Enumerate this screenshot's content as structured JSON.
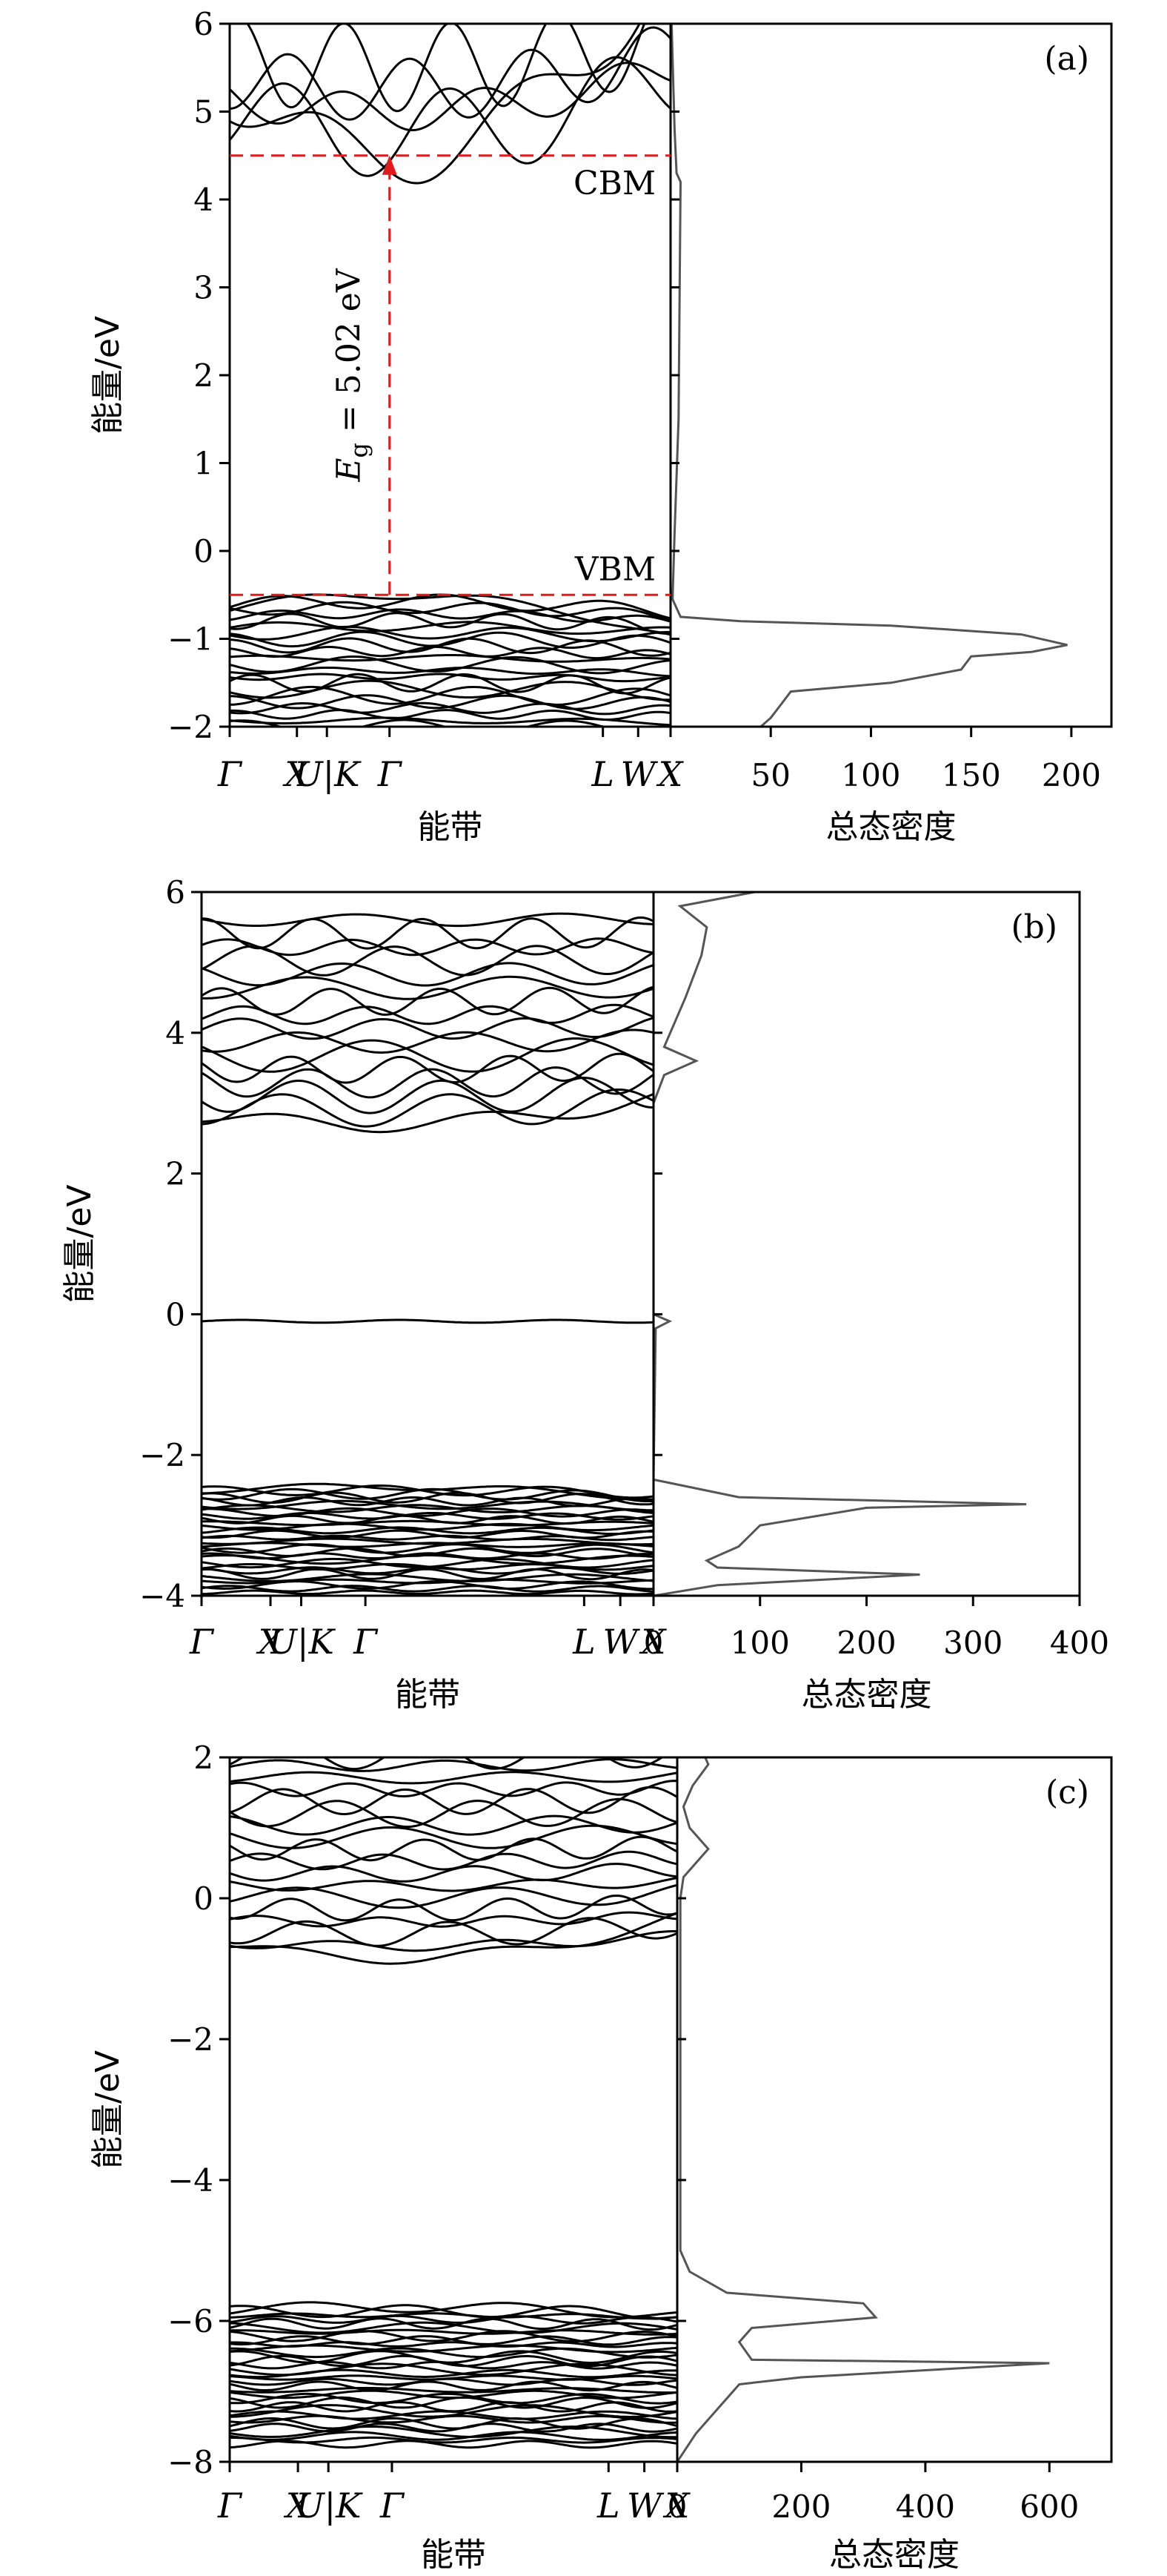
{
  "chart_data": [
    {
      "id": "a",
      "type": "line",
      "panel_label": "(a)",
      "ylabel": "能量/eV",
      "band_xlabel": "能带",
      "dos_xlabel": "总态密度",
      "ylim": [
        -2,
        6
      ],
      "yticks": [
        -2,
        -1,
        0,
        1,
        2,
        3,
        4,
        5,
        6
      ],
      "kpoints": [
        "Γ",
        "X",
        "U|K",
        "Γ",
        "L",
        "W",
        "X"
      ],
      "kpoint_positions": [
        0,
        0.1525,
        0.2205,
        0.3625,
        0.8465,
        0.9265,
        1
      ],
      "dos_xlim": [
        0,
        220
      ],
      "dos_xticks": [
        50,
        100,
        150,
        200
      ],
      "annotations": {
        "cbm_label": "CBM",
        "vbm_label": "VBM",
        "gap_label": "E",
        "gap_sub": "g",
        "gap_value": " = 5.02 eV"
      },
      "cbm": 4.5,
      "vbm": -0.5,
      "dos_curve": [
        [
          0.5,
          6
        ],
        [
          2,
          4.8
        ],
        [
          3,
          4.3
        ],
        [
          5,
          4.2
        ],
        [
          4,
          1.5
        ],
        [
          2,
          0.2
        ],
        [
          1,
          -0.55
        ],
        [
          5,
          -0.75
        ],
        [
          35,
          -0.8
        ],
        [
          110,
          -0.85
        ],
        [
          175,
          -0.95
        ],
        [
          198,
          -1.07
        ],
        [
          180,
          -1.15
        ],
        [
          150,
          -1.2
        ],
        [
          145,
          -1.35
        ],
        [
          110,
          -1.5
        ],
        [
          60,
          -1.6
        ],
        [
          55,
          -1.75
        ],
        [
          50,
          -1.9
        ],
        [
          45,
          -2
        ]
      ],
      "band_groups": [
        {
          "base": 4.5,
          "width": 1.0,
          "curvature": 5.5,
          "count": 5,
          "spread": 0.45
        },
        {
          "base": -0.5,
          "width": 1.5,
          "curvature": -1.2,
          "count": 22,
          "spread": 0.07
        }
      ]
    },
    {
      "id": "b",
      "type": "line",
      "panel_label": "(b)",
      "ylabel": "能量/eV",
      "band_xlabel": "能带",
      "dos_xlabel": "总态密度",
      "ylim": [
        -4,
        6
      ],
      "yticks": [
        -4,
        -2,
        0,
        2,
        4,
        6
      ],
      "kpoints": [
        "Γ",
        "X",
        "U|K",
        "Γ",
        "L",
        "W",
        "X"
      ],
      "kpoint_positions": [
        0,
        0.1525,
        0.2205,
        0.3625,
        0.8465,
        0.9265,
        1
      ],
      "dos_xlim": [
        0,
        400
      ],
      "dos_xticks": [
        0,
        100,
        200,
        300,
        400
      ],
      "dos_curve": [
        [
          0,
          -4
        ],
        [
          60,
          -3.85
        ],
        [
          250,
          -3.7
        ],
        [
          60,
          -3.6
        ],
        [
          50,
          -3.5
        ],
        [
          80,
          -3.3
        ],
        [
          100,
          -3.0
        ],
        [
          200,
          -2.75
        ],
        [
          350,
          -2.7
        ],
        [
          80,
          -2.6
        ],
        [
          0,
          -2.35
        ],
        [
          2,
          -0.2
        ],
        [
          15,
          -0.1
        ],
        [
          0,
          0
        ],
        [
          0,
          3.0
        ],
        [
          10,
          3.4
        ],
        [
          40,
          3.6
        ],
        [
          10,
          3.8
        ],
        [
          30,
          4.5
        ],
        [
          45,
          5.1
        ],
        [
          50,
          5.5
        ],
        [
          25,
          5.8
        ],
        [
          95,
          6
        ]
      ],
      "band_groups": [
        {
          "base": 2.7,
          "width": 2.9,
          "curvature": 0.9,
          "count": 16,
          "spread": 0.18
        },
        {
          "base": -0.1,
          "width": 0.05,
          "curvature": 0,
          "count": 1,
          "spread": 0
        },
        {
          "base": -2.45,
          "width": 1.5,
          "curvature": -0.4,
          "count": 30,
          "spread": 0.05
        }
      ]
    },
    {
      "id": "c",
      "type": "line",
      "panel_label": "(c)",
      "ylabel": "能量/eV",
      "band_xlabel": "能带",
      "dos_xlabel": "总态密度",
      "ylim": [
        -8,
        2
      ],
      "yticks": [
        -8,
        -6,
        -4,
        -2,
        0,
        2
      ],
      "kpoints": [
        "Γ",
        "X",
        "U|K",
        "Γ",
        "L",
        "W",
        "X"
      ],
      "kpoint_positions": [
        0,
        0.1525,
        0.2205,
        0.3625,
        0.8465,
        0.9265,
        1
      ],
      "dos_xlim": [
        0,
        700
      ],
      "dos_xticks": [
        0,
        200,
        400,
        600
      ],
      "dos_curve": [
        [
          0,
          -8
        ],
        [
          30,
          -7.6
        ],
        [
          60,
          -7.3
        ],
        [
          100,
          -6.9
        ],
        [
          200,
          -6.8
        ],
        [
          600,
          -6.6
        ],
        [
          120,
          -6.55
        ],
        [
          100,
          -6.3
        ],
        [
          120,
          -6.1
        ],
        [
          320,
          -5.95
        ],
        [
          300,
          -5.75
        ],
        [
          80,
          -5.6
        ],
        [
          20,
          -5.3
        ],
        [
          5,
          -5.0
        ],
        [
          5,
          0.0
        ],
        [
          10,
          0.3
        ],
        [
          50,
          0.7
        ],
        [
          20,
          1.0
        ],
        [
          10,
          1.3
        ],
        [
          25,
          1.6
        ],
        [
          50,
          1.9
        ],
        [
          45,
          2
        ]
      ],
      "band_groups": [
        {
          "base": -0.85,
          "width": 2.9,
          "curvature": 1.4,
          "count": 18,
          "spread": 0.16
        },
        {
          "base": -5.8,
          "width": 1.95,
          "curvature": -0.3,
          "count": 34,
          "spread": 0.06
        }
      ]
    }
  ]
}
